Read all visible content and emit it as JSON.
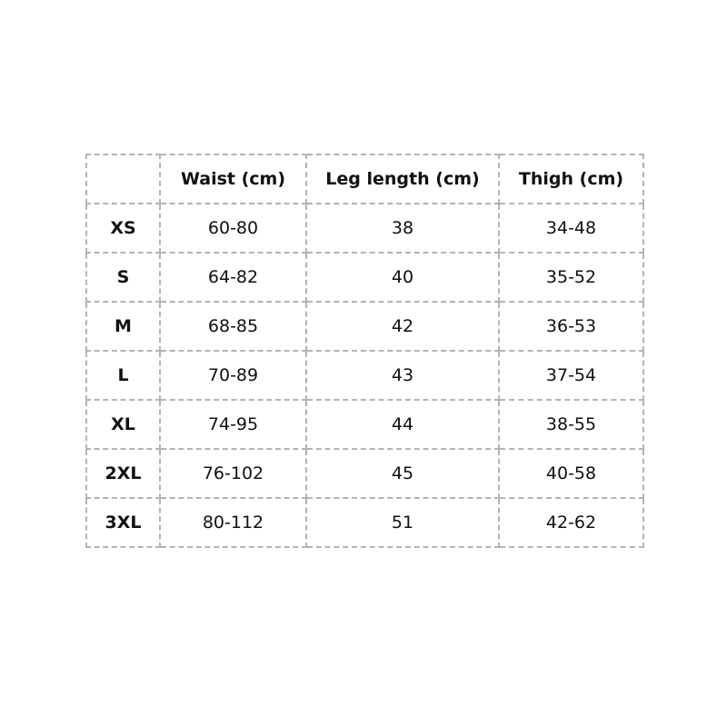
{
  "table": {
    "headers": [
      "",
      "Waist (cm)",
      "Leg length (cm)",
      "Thigh (cm)"
    ],
    "rows": [
      [
        "XS",
        "60-80",
        "38",
        "34-48"
      ],
      [
        "S",
        "64-82",
        "40",
        "35-52"
      ],
      [
        "M",
        "68-85",
        "42",
        "36-53"
      ],
      [
        "L",
        "70-89",
        "43",
        "37-54"
      ],
      [
        "XL",
        "74-95",
        "44",
        "38-55"
      ],
      [
        "2XL",
        "76-102",
        "45",
        "40-58"
      ],
      [
        "3XL",
        "80-112",
        "51",
        "42-62"
      ]
    ]
  }
}
